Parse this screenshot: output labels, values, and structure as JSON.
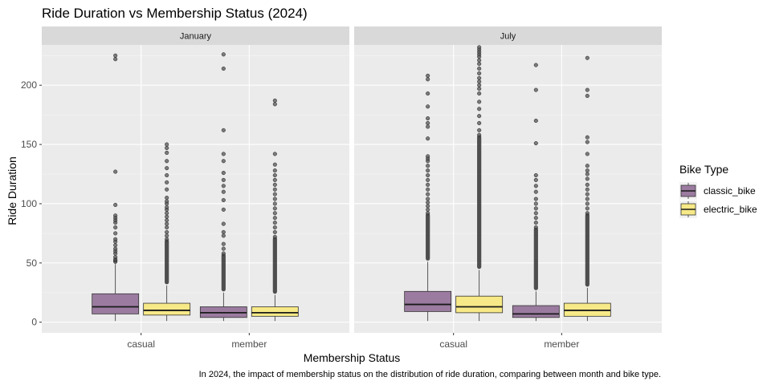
{
  "chart_data": {
    "type": "box",
    "title": "Ride Duration vs Membership Status (2024)",
    "xlabel": "Membership Status",
    "ylabel": "Ride Duration",
    "caption": "In 2024, the impact of membership status on the distribution of ride duration, comparing between month and bike type.",
    "categories": [
      "casual",
      "member"
    ],
    "y_ticks": [
      0,
      50,
      100,
      150,
      200
    ],
    "ylim": [
      -9,
      234
    ],
    "grid": true,
    "legend": {
      "title": "Bike Type",
      "position": "right",
      "entries": [
        {
          "name": "classic_bike",
          "color": "#9B7BA0"
        },
        {
          "name": "electric_bike",
          "color": "#F7E987"
        }
      ]
    },
    "facets": [
      {
        "name": "January",
        "boxes": [
          {
            "category": "casual",
            "bike": "classic_bike",
            "q1": 7,
            "median": 13,
            "q3": 24,
            "whisker_low": 1,
            "whisker_high": 49,
            "outliers": [
              51,
              52,
              53,
              55,
              58,
              60,
              62,
              65,
              68,
              70,
              75,
              80,
              84,
              86,
              88,
              90,
              99,
              127,
              222,
              225
            ]
          },
          {
            "category": "casual",
            "bike": "electric_bike",
            "q1": 6,
            "median": 10,
            "q3": 16,
            "whisker_low": 1,
            "whisker_high": 31,
            "outliers": [
              70,
              73,
              76,
              80,
              83,
              86,
              89,
              92,
              95,
              97,
              100,
              102,
              105,
              112,
              118,
              124,
              130,
              136,
              143,
              147,
              150
            ],
            "outlier_band": [
              32,
              70
            ]
          },
          {
            "category": "member",
            "bike": "classic_bike",
            "q1": 4,
            "median": 8,
            "q3": 13,
            "whisker_low": 1,
            "whisker_high": 25,
            "outliers": [
              58,
              62,
              66,
              73,
              76,
              83,
              95,
              103,
              110,
              115,
              120,
              126,
              136,
              142,
              162,
              214,
              226
            ],
            "outlier_band": [
              26,
              58
            ]
          },
          {
            "category": "member",
            "bike": "electric_bike",
            "q1": 5,
            "median": 8,
            "q3": 13,
            "whisker_low": 1,
            "whisker_high": 23,
            "outliers": [
              72,
              76,
              80,
              84,
              88,
              92,
              96,
              100,
              104,
              108,
              112,
              116,
              120,
              124,
              128,
              133,
              142,
              184,
              187
            ],
            "outlier_band": [
              24,
              72
            ]
          }
        ]
      },
      {
        "name": "July",
        "boxes": [
          {
            "category": "casual",
            "bike": "classic_bike",
            "q1": 9,
            "median": 15,
            "q3": 26,
            "whisker_low": 1,
            "whisker_high": 51,
            "outliers": [
              92,
              95,
              98,
              101,
              104,
              108,
              112,
              116,
              120,
              124,
              128,
              132,
              136,
              138,
              140,
              155,
              165,
              168,
              172,
              182,
              193,
              205,
              208
            ],
            "outlier_band": [
              52,
              92
            ]
          },
          {
            "category": "casual",
            "bike": "electric_bike",
            "q1": 8,
            "median": 13,
            "q3": 22,
            "whisker_low": 1,
            "whisker_high": 44,
            "outliers": [
              158,
              162,
              168,
              174,
              180,
              186,
              193,
              197,
              200,
              203,
              206,
              210,
              214,
              218,
              221,
              224,
              226,
              228,
              230,
              232
            ],
            "outlier_band": [
              45,
              158
            ]
          },
          {
            "category": "member",
            "bike": "classic_bike",
            "q1": 4,
            "median": 7,
            "q3": 14,
            "whisker_low": 1,
            "whisker_high": 26,
            "outliers": [
              80,
              84,
              88,
              92,
              96,
              100,
              104,
              110,
              115,
              120,
              124,
              151,
              170,
              196,
              217
            ],
            "outlier_band": [
              27,
              80
            ]
          },
          {
            "category": "member",
            "bike": "electric_bike",
            "q1": 5,
            "median": 10,
            "q3": 16,
            "whisker_low": 1,
            "whisker_high": 29,
            "outliers": [
              92,
              96,
              100,
              104,
              108,
              112,
              116,
              121,
              125,
              128,
              132,
              142,
              152,
              156,
              191,
              196,
              223
            ],
            "outlier_band": [
              30,
              92
            ]
          }
        ]
      }
    ]
  }
}
